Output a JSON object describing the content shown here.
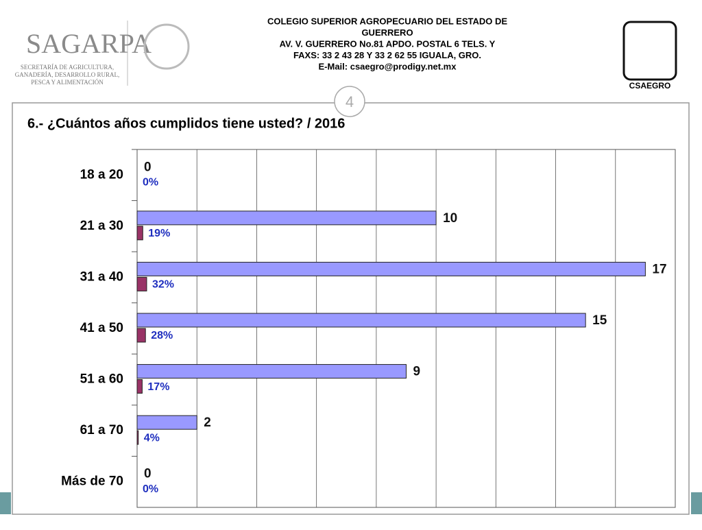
{
  "header": {
    "lines": [
      "COLEGIO SUPERIOR AGROPECUARIO DEL ESTADO DE",
      "GUERRERO",
      "AV. V. GUERRERO No.81     APDO. POSTAL  6      TELS. Y",
      "FAXS: 33 2 43 28 Y 33 2 62 55      IGUALA, GRO.",
      "E-Mail:  csaegro@prodigy.net.mx"
    ]
  },
  "logos": {
    "left": "SAGARPA",
    "left_sub": [
      "SECRETARÍA DE AGRICULTURA,",
      "GANADERÍA, DESARROLLO RURAL,",
      "PESCA Y ALIMENTACIÓN"
    ],
    "right": "CSAEGRO"
  },
  "page_number": "4",
  "chart_data": {
    "type": "hbar",
    "title": "6.- ¿Cuántos años cumplidos tiene usted?   /   2016",
    "categories": [
      "18 a 20",
      "21 a 30",
      "31 a 40",
      "41 a 50",
      "51 a 60",
      "61 a 70",
      "Más de 70"
    ],
    "series": [
      {
        "color": "#9999ff",
        "values": [
          0,
          10,
          17,
          15,
          9,
          2,
          0
        ]
      },
      {
        "color": "#993366",
        "values": [
          0,
          0.19,
          0.32,
          0.28,
          0.17,
          0.04,
          0
        ],
        "value_labels": [
          "0%",
          "19%",
          "32%",
          "28%",
          "17%",
          "4%",
          "0%"
        ]
      }
    ],
    "xlim": [
      0,
      18
    ],
    "xticks": [
      0,
      2,
      4,
      6,
      8,
      10,
      12,
      14,
      16,
      18
    ],
    "grid": true
  }
}
